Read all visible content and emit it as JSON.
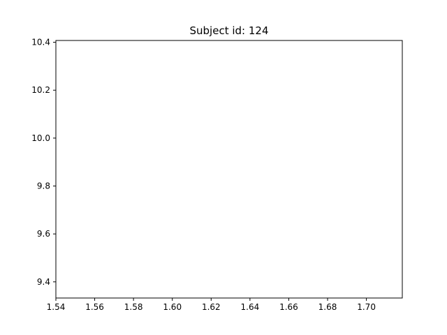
{
  "chart_data": {
    "type": "scatter",
    "title": "Subject id: 124",
    "xlabel": "",
    "ylabel": "",
    "xlim": [
      1.54,
      1.7185
    ],
    "ylim": [
      9.3325,
      10.4075
    ],
    "x_ticks": [
      1.54,
      1.56,
      1.58,
      1.6,
      1.62,
      1.64,
      1.66,
      1.68,
      1.7
    ],
    "x_tick_labels": [
      "1.54",
      "1.56",
      "1.58",
      "1.60",
      "1.62",
      "1.64",
      "1.66",
      "1.68",
      "1.70"
    ],
    "y_ticks": [
      9.4,
      9.6,
      9.8,
      10.0,
      10.2,
      10.4
    ],
    "y_tick_labels": [
      "9.4",
      "9.6",
      "9.8",
      "10.0",
      "10.2",
      "10.4"
    ],
    "series": [],
    "grid": false,
    "colors": {
      "axes": "#000000",
      "background": "#ffffff"
    }
  }
}
